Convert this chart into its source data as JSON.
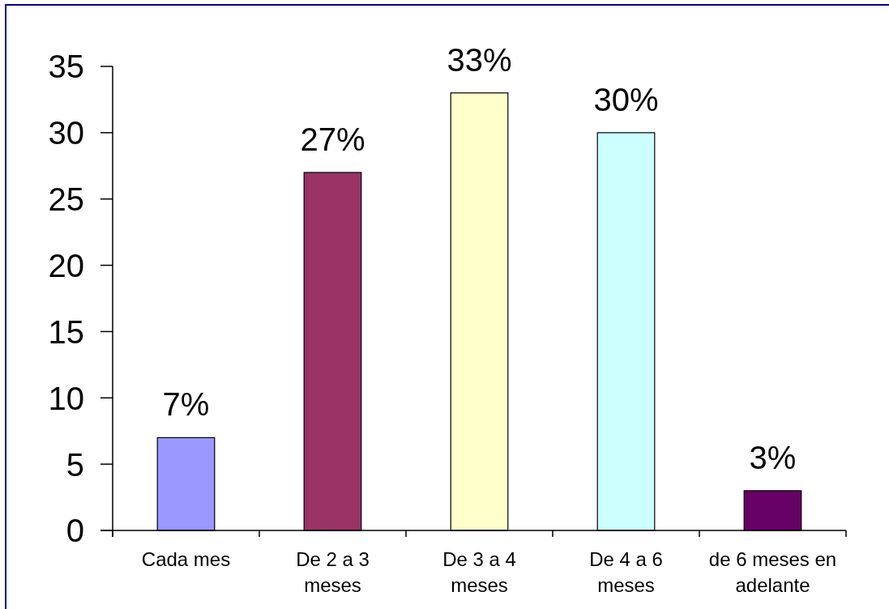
{
  "chart_data": {
    "type": "bar",
    "categories": [
      "Cada mes",
      "De 2 a 3 meses",
      "De 3 a 4 meses",
      "De 4 a 6 meses",
      "de 6 meses en adelante"
    ],
    "values": [
      7,
      27,
      33,
      30,
      3
    ],
    "colors": [
      "#9999ff",
      "#993366",
      "#ffffcc",
      "#ccffff",
      "#660066"
    ],
    "value_labels": [
      "7%",
      "27%",
      "33%",
      "30%",
      "3%"
    ],
    "ylim": [
      0,
      35
    ],
    "yticks": [
      0,
      5,
      10,
      15,
      20,
      25,
      30,
      35
    ]
  }
}
